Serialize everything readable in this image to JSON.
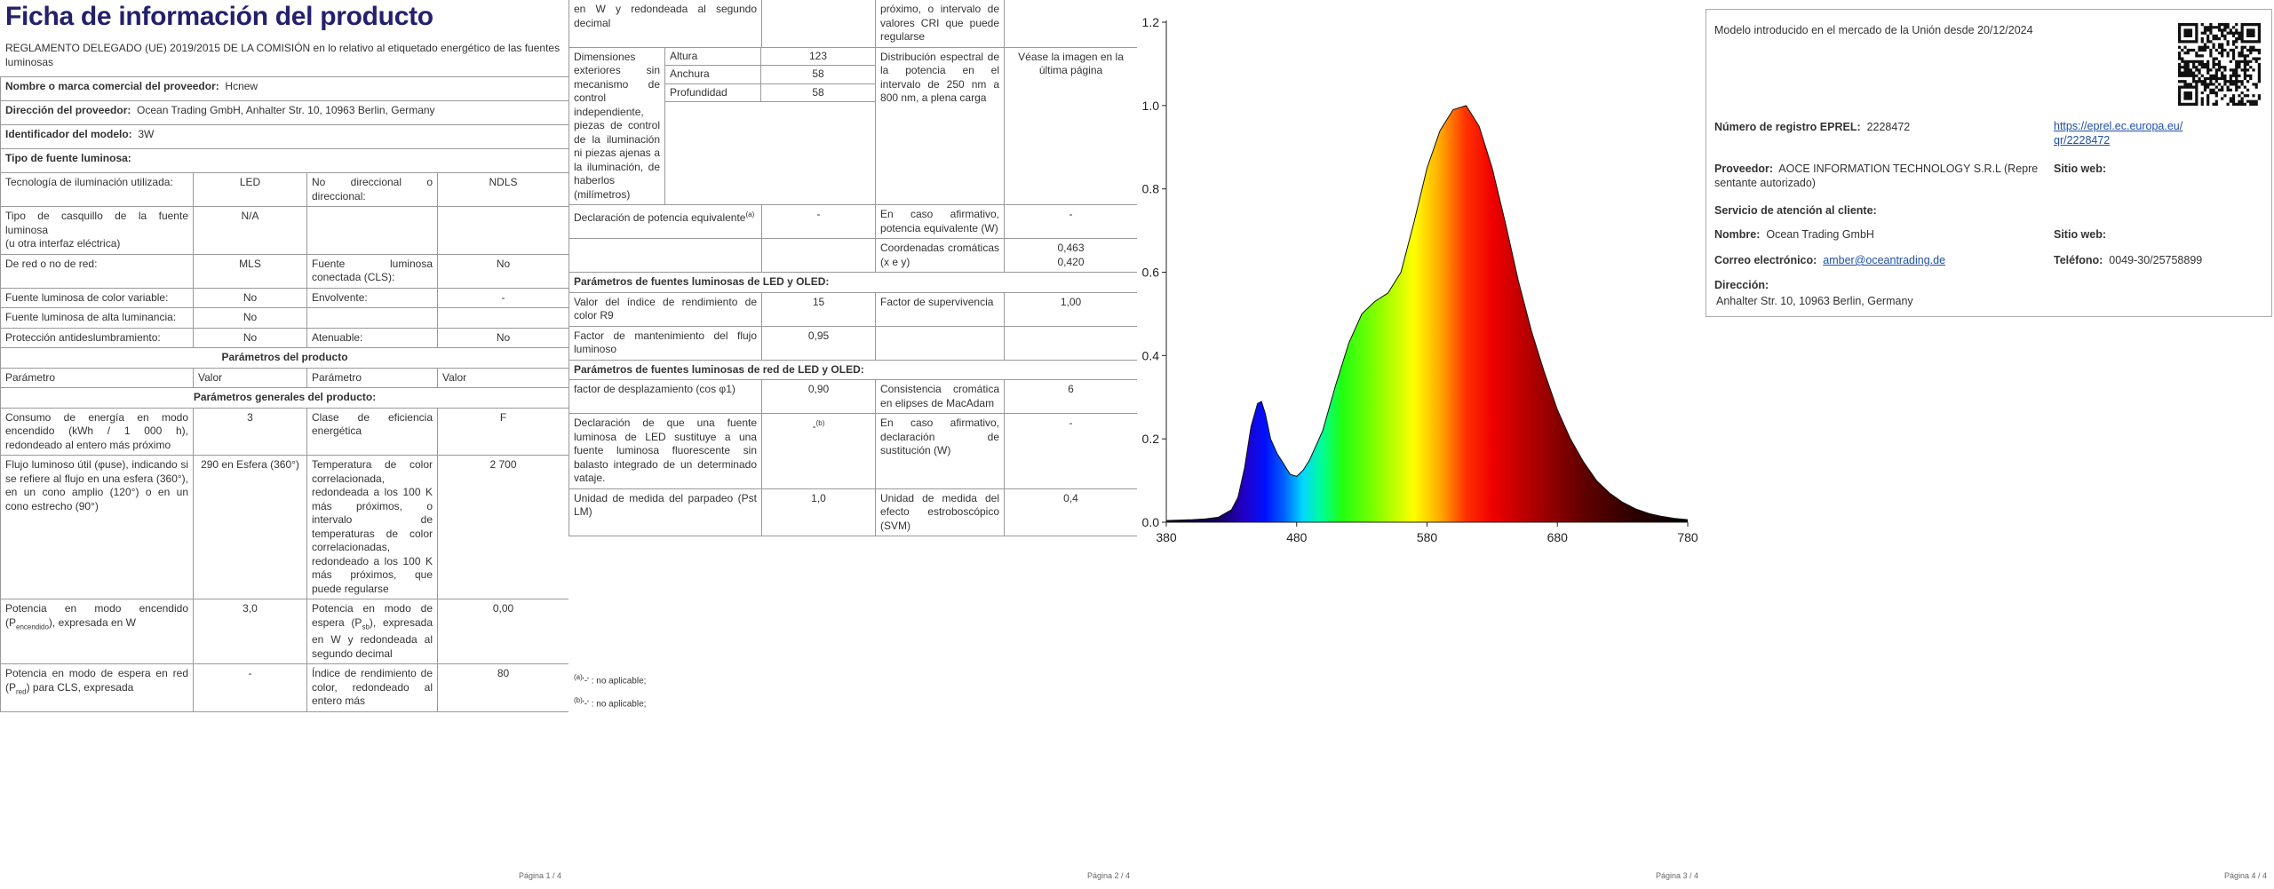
{
  "page1": {
    "title": "Ficha de información del producto",
    "regulation": "REGLAMENTO DELEGADO (UE) 2019/2015 DE LA COMISIÓN en lo relativo al etiquetado energético de las fuentes luminosas",
    "rows": [
      {
        "label": "Nombre o marca comercial del proveedor:",
        "value": "Hcnew"
      },
      {
        "label": "Dirección del proveedor:",
        "value": "Ocean Trading GmbH, Anhalter Str. 10, 10963 Berlin, Germany"
      },
      {
        "label": "Identificador del modelo:",
        "value": "3W"
      },
      {
        "label": "Tipo de fuente luminosa:"
      },
      {
        "cells": [
          "Tecnología de iluminación utilizada:",
          "LED",
          "No direccional o direccional:",
          "NDLS"
        ]
      },
      {
        "cells": [
          "Tipo de casquillo de la fuente luminosa\n(u otra interfaz eléctrica)",
          "N/A",
          null,
          null
        ]
      },
      {
        "cells": [
          "De red o no de red:",
          "MLS",
          "Fuente luminosa conectada (CLS):",
          "No"
        ]
      },
      {
        "cells": [
          "Fuente luminosa de color variable:",
          "No",
          "Envolvente:",
          "-"
        ]
      },
      {
        "cells": [
          "Fuente luminosa de alta luminancia:",
          "No",
          null,
          null
        ]
      },
      {
        "cells": [
          "Protección antideslumbramiento:",
          "No",
          "Atenuable:",
          "No"
        ]
      },
      {
        "heading": "Parámetros del producto"
      },
      {
        "header": [
          "Parámetro",
          "Valor",
          "Parámetro",
          "Valor"
        ]
      },
      {
        "heading": "Parámetros generales del producto:"
      },
      {
        "cells": [
          "Consumo de energía en modo encendido (kWh / 1 000 h), redondeado al entero más próximo",
          "3",
          "Clase de eficiencia energética",
          "F"
        ]
      },
      {
        "cells": [
          "Flujo luminoso útil (φuse), indicando si se refiere al flujo en una esfera (360°), en un cono amplio (120°) o en un cono estrecho (90°)",
          "290 en Esfera (360°)",
          "Temperatura de color correlacionada, redondeada a los 100 K más próximos, o intervalo de temperaturas de color correlacionadas, redondeado a los 100 K más próximos, que puede regularse",
          "2 700"
        ]
      },
      {
        "cells": [
          [
            "Potencia en modo encendido (P",
            {
              "sub": "encendido"
            },
            "), expresada en W"
          ],
          "3,0",
          [
            "Potencia en modo de espera (P",
            {
              "sub": "sb"
            },
            "), expresada en W y redondeada al segundo decimal"
          ],
          "0,00"
        ]
      },
      {
        "cells": [
          [
            "Potencia en modo de espera en red (P",
            {
              "sub": "red"
            },
            ") para CLS, expresada"
          ],
          "-",
          "Índice de rendimiento de color, redondeado al entero más",
          "80"
        ]
      }
    ],
    "footer": "Página 1 / 4"
  },
  "page2": {
    "rows": [
      {
        "cells": [
          "en W y redondeada al segundo decimal",
          null,
          "próximo, o intervalo de valores CRI que puede regularse",
          null
        ]
      },
      {
        "description": "Dimensiones exteriores sin mecanismo de control independiente, piezas de control de la iluminación ni piezas ajenas a la iluminación, de haberlos (milímetros)",
        "dimensions": [
          [
            "Altura",
            "123"
          ],
          [
            "Anchura",
            "58"
          ],
          [
            "Profundidad",
            "58"
          ]
        ],
        "cells": [
          "Distribución espectral de la potencia en el intervalo de 250 nm a 800 nm, a plena carga",
          "Véase la imagen en la última página"
        ]
      },
      {
        "cells": [
          [
            "Declaración de potencia equivalente",
            {
              "sup": "(a)"
            }
          ],
          "-",
          "En caso afirmativo, potencia equivalente (W)",
          "-"
        ]
      },
      {
        "cells": [
          null,
          null,
          "Coordenadas cromáticas (x e y)",
          "0,463\n0,420"
        ]
      },
      {
        "heading": "Parámetros de fuentes luminosas de LED y OLED:"
      },
      {
        "cells": [
          "Valor del índice de rendimiento de color R9",
          "15",
          "Factor de supervivencia",
          "1,00"
        ]
      },
      {
        "cells": [
          "Factor de mantenimiento del flujo luminoso",
          "0,95",
          null,
          null
        ]
      },
      {
        "heading": "Parámetros de fuentes luminosas de red de LED y OLED:"
      },
      {
        "cells": [
          "factor de desplazamiento (cos φ1)",
          "0,90",
          "Consistencia cromática en elipses de MacAdam",
          "6"
        ]
      },
      {
        "cells": [
          "Declaración de que una fuente luminosa de LED sustituye a una fuente luminosa fluorescente sin balasto integrado de un determinado vataje.",
          [
            "-",
            {
              "sup": "(b)"
            }
          ],
          "En caso afirmativo, declaración de sustitución (W)",
          "-"
        ]
      },
      {
        "cells": [
          "Unidad de medida del parpadeo (Pst LM)",
          "1,0",
          "Unidad de medida del efecto estroboscópico (SVM)",
          "0,4"
        ]
      }
    ],
    "footnotes": [
      [
        {
          "sup": "(a)"
        },
        "'-' : no aplicable;"
      ],
      [
        {
          "sup": "(b)"
        },
        "'-' : no aplicable;"
      ]
    ],
    "footer": "Página 2 / 4"
  },
  "spectrum": {
    "type": "area",
    "x": [
      380,
      390,
      400,
      410,
      420,
      430,
      435,
      440,
      445,
      450,
      453,
      456,
      460,
      465,
      470,
      475,
      480,
      485,
      490,
      500,
      510,
      520,
      530,
      540,
      550,
      560,
      570,
      580,
      590,
      600,
      610,
      620,
      630,
      640,
      650,
      660,
      670,
      680,
      690,
      700,
      710,
      720,
      730,
      740,
      750,
      760,
      770,
      780
    ],
    "values": [
      0.004,
      0.005,
      0.006,
      0.008,
      0.012,
      0.03,
      0.06,
      0.13,
      0.23,
      0.285,
      0.29,
      0.26,
      0.2,
      0.165,
      0.14,
      0.115,
      0.11,
      0.125,
      0.15,
      0.22,
      0.33,
      0.43,
      0.5,
      0.53,
      0.55,
      0.6,
      0.72,
      0.85,
      0.94,
      0.99,
      1.0,
      0.95,
      0.85,
      0.72,
      0.58,
      0.46,
      0.36,
      0.27,
      0.2,
      0.145,
      0.1,
      0.07,
      0.048,
      0.032,
      0.021,
      0.014,
      0.009,
      0.006
    ],
    "xlim": [
      380,
      780
    ],
    "ylim": [
      0,
      1.2
    ],
    "xticks": [
      380,
      480,
      580,
      680,
      780
    ],
    "yticks": [
      {
        "value": 0,
        "label": "0.0"
      },
      0.2,
      0.4,
      0.6,
      0.8,
      {
        "value": 1,
        "label": "1.0"
      },
      1.2
    ],
    "footer": "Página 3 / 4"
  },
  "page4": {
    "intro": "Modelo introducido en el mercado de la Unión desde 20/12/2024",
    "eprel": {
      "label": "Número de registro EPREL:",
      "value": "2228472",
      "link": "https://eprel.ec.europa.eu/qr/2228472"
    },
    "supplier": {
      "label": "Proveedor:",
      "value": "AOCE INFORMATION TECHNOLOGY S.R.L (Representante autorizado)",
      "website_label": "Sitio web:"
    },
    "customer_service": "Servicio de atención al cliente:",
    "name": {
      "label": "Nombre:",
      "value": "Ocean Trading GmbH",
      "website_label": "Sitio web:"
    },
    "email": {
      "label": "Correo electrónico:",
      "value": "amber@oceantrading.de"
    },
    "phone": {
      "label": "Teléfono:",
      "value": "0049-30/25758899"
    },
    "address": {
      "label": "Dirección:",
      "value": "Anhalter Str. 10, 10963 Berlin, Germany"
    },
    "footer": "Página 4 / 4"
  }
}
